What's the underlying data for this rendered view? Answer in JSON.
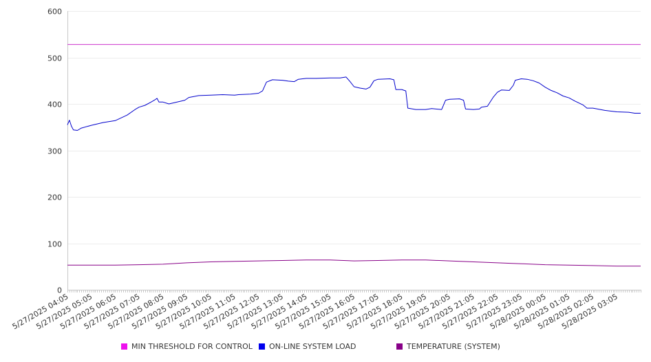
{
  "chart_data": {
    "type": "line",
    "title": "",
    "xlabel": "",
    "ylabel": "",
    "ylim": [
      0,
      600
    ],
    "yticks": [
      0,
      100,
      200,
      300,
      400,
      500,
      600
    ],
    "grid": "horizontal",
    "legend_position": "bottom",
    "x_start": "5/27/2025 04:05",
    "x_end": "5/28/2025 04:05",
    "x_tick_labels": [
      "5/27/2025 04:05",
      "5/27/2025 05:05",
      "5/27/2025 06:05",
      "5/27/2025 07:05",
      "5/27/2025 08:05",
      "5/27/2025 09:05",
      "5/27/2025 10:05",
      "5/27/2025 11:05",
      "5/27/2025 12:05",
      "5/27/2025 13:05",
      "5/27/2025 14:05",
      "5/27/2025 15:05",
      "5/27/2025 16:05",
      "5/27/2025 17:05",
      "5/27/2025 18:05",
      "5/27/2025 19:05",
      "5/27/2025 20:05",
      "5/27/2025 21:05",
      "5/27/2025 22:05",
      "5/27/2025 23:05",
      "5/28/2025 00:05",
      "5/28/2025 01:05",
      "5/28/2025 02:05",
      "5/28/2025 03:05"
    ],
    "series": [
      {
        "name": "MIN THRESHOLD FOR CONTROL",
        "color": "#cc33cc",
        "legend_color": "#ee11ee",
        "points": [
          [
            "5/27/2025 04:05",
            528
          ],
          [
            "5/28/2025 04:05",
            528
          ]
        ]
      },
      {
        "name": "ON-LINE SYSTEM LOAD",
        "color": "#0000cc",
        "legend_color": "#0000ee",
        "points": [
          [
            "5/27/2025 04:05",
            355
          ],
          [
            "5/27/2025 04:10",
            365
          ],
          [
            "5/27/2025 04:15",
            352
          ],
          [
            "5/27/2025 04:20",
            344
          ],
          [
            "5/27/2025 04:30",
            343
          ],
          [
            "5/27/2025 04:40",
            348
          ],
          [
            "5/27/2025 05:05",
            354
          ],
          [
            "5/27/2025 05:35",
            360
          ],
          [
            "5/27/2025 06:05",
            364
          ],
          [
            "5/27/2025 06:35",
            376
          ],
          [
            "5/27/2025 06:55",
            388
          ],
          [
            "5/27/2025 07:05",
            393
          ],
          [
            "5/27/2025 07:20",
            397
          ],
          [
            "5/27/2025 07:35",
            404
          ],
          [
            "5/27/2025 07:45",
            409
          ],
          [
            "5/27/2025 07:50",
            412
          ],
          [
            "5/27/2025 07:55",
            404
          ],
          [
            "5/27/2025 08:05",
            404
          ],
          [
            "5/27/2025 08:20",
            400
          ],
          [
            "5/27/2025 08:35",
            403
          ],
          [
            "5/27/2025 09:00",
            408
          ],
          [
            "5/27/2025 09:10",
            414
          ],
          [
            "5/27/2025 09:35",
            418
          ],
          [
            "5/27/2025 10:05",
            419
          ],
          [
            "5/27/2025 10:35",
            420
          ],
          [
            "5/27/2025 11:05",
            419
          ],
          [
            "5/27/2025 11:15",
            420
          ],
          [
            "5/27/2025 11:45",
            421
          ],
          [
            "5/27/2025 12:05",
            423
          ],
          [
            "5/27/2025 12:15",
            428
          ],
          [
            "5/27/2025 12:25",
            447
          ],
          [
            "5/27/2025 12:40",
            452
          ],
          [
            "5/27/2025 13:05",
            451
          ],
          [
            "5/27/2025 13:20",
            449
          ],
          [
            "5/27/2025 13:35",
            448
          ],
          [
            "5/27/2025 13:45",
            453
          ],
          [
            "5/27/2025 14:05",
            455
          ],
          [
            "5/27/2025 14:30",
            455
          ],
          [
            "5/27/2025 15:05",
            456
          ],
          [
            "5/27/2025 15:30",
            456
          ],
          [
            "5/27/2025 15:45",
            458
          ],
          [
            "5/27/2025 15:55",
            448
          ],
          [
            "5/27/2025 16:05",
            437
          ],
          [
            "5/27/2025 16:20",
            434
          ],
          [
            "5/27/2025 16:35",
            432
          ],
          [
            "5/27/2025 16:45",
            436
          ],
          [
            "5/27/2025 16:55",
            450
          ],
          [
            "5/27/2025 17:05",
            453
          ],
          [
            "5/27/2025 17:35",
            454
          ],
          [
            "5/27/2025 17:45",
            452
          ],
          [
            "5/27/2025 17:50",
            431
          ],
          [
            "5/27/2025 18:05",
            431
          ],
          [
            "5/27/2025 18:15",
            428
          ],
          [
            "5/27/2025 18:20",
            391
          ],
          [
            "5/27/2025 18:40",
            388
          ],
          [
            "5/27/2025 19:05",
            388
          ],
          [
            "5/27/2025 19:20",
            390
          ],
          [
            "5/27/2025 19:45",
            388
          ],
          [
            "5/27/2025 19:55",
            408
          ],
          [
            "5/27/2025 20:05",
            410
          ],
          [
            "5/27/2025 20:30",
            411
          ],
          [
            "5/27/2025 20:40",
            408
          ],
          [
            "5/27/2025 20:45",
            389
          ],
          [
            "5/27/2025 21:05",
            388
          ],
          [
            "5/27/2025 21:20",
            389
          ],
          [
            "5/27/2025 21:25",
            393
          ],
          [
            "5/27/2025 21:40",
            395
          ],
          [
            "5/27/2025 21:55",
            415
          ],
          [
            "5/27/2025 22:05",
            425
          ],
          [
            "5/27/2025 22:15",
            430
          ],
          [
            "5/27/2025 22:35",
            429
          ],
          [
            "5/27/2025 22:45",
            440
          ],
          [
            "5/27/2025 22:50",
            451
          ],
          [
            "5/27/2025 23:05",
            454
          ],
          [
            "5/27/2025 23:20",
            453
          ],
          [
            "5/27/2025 23:35",
            450
          ],
          [
            "5/27/2025 23:50",
            445
          ],
          [
            "5/28/2025 00:05",
            436
          ],
          [
            "5/28/2025 00:20",
            429
          ],
          [
            "5/28/2025 00:35",
            424
          ],
          [
            "5/28/2025 00:50",
            417
          ],
          [
            "5/28/2025 01:05",
            413
          ],
          [
            "5/28/2025 01:20",
            406
          ],
          [
            "5/28/2025 01:40",
            398
          ],
          [
            "5/28/2025 01:50",
            391
          ],
          [
            "5/28/2025 02:05",
            391
          ],
          [
            "5/28/2025 02:35",
            386
          ],
          [
            "5/28/2025 03:05",
            383
          ],
          [
            "5/28/2025 03:35",
            382
          ],
          [
            "5/28/2025 03:50",
            380
          ],
          [
            "5/28/2025 04:05",
            380
          ]
        ]
      },
      {
        "name": "TEMPERATURE (SYSTEM)",
        "color": "#880088",
        "legend_color": "#880088",
        "points": [
          [
            "5/27/2025 04:05",
            53
          ],
          [
            "5/27/2025 06:05",
            53
          ],
          [
            "5/27/2025 07:05",
            54
          ],
          [
            "5/27/2025 08:05",
            55
          ],
          [
            "5/27/2025 09:05",
            58
          ],
          [
            "5/27/2025 10:05",
            60
          ],
          [
            "5/27/2025 11:05",
            61
          ],
          [
            "5/27/2025 12:05",
            62
          ],
          [
            "5/27/2025 13:05",
            63
          ],
          [
            "5/27/2025 14:05",
            64
          ],
          [
            "5/27/2025 15:05",
            64
          ],
          [
            "5/27/2025 16:05",
            62
          ],
          [
            "5/27/2025 17:05",
            63
          ],
          [
            "5/27/2025 18:05",
            64
          ],
          [
            "5/27/2025 19:05",
            64
          ],
          [
            "5/27/2025 20:05",
            62
          ],
          [
            "5/27/2025 21:05",
            60
          ],
          [
            "5/27/2025 22:05",
            58
          ],
          [
            "5/27/2025 23:05",
            56
          ],
          [
            "5/28/2025 00:05",
            54
          ],
          [
            "5/28/2025 01:05",
            53
          ],
          [
            "5/28/2025 02:05",
            52
          ],
          [
            "5/28/2025 03:05",
            51
          ],
          [
            "5/28/2025 04:05",
            51
          ]
        ]
      }
    ]
  }
}
